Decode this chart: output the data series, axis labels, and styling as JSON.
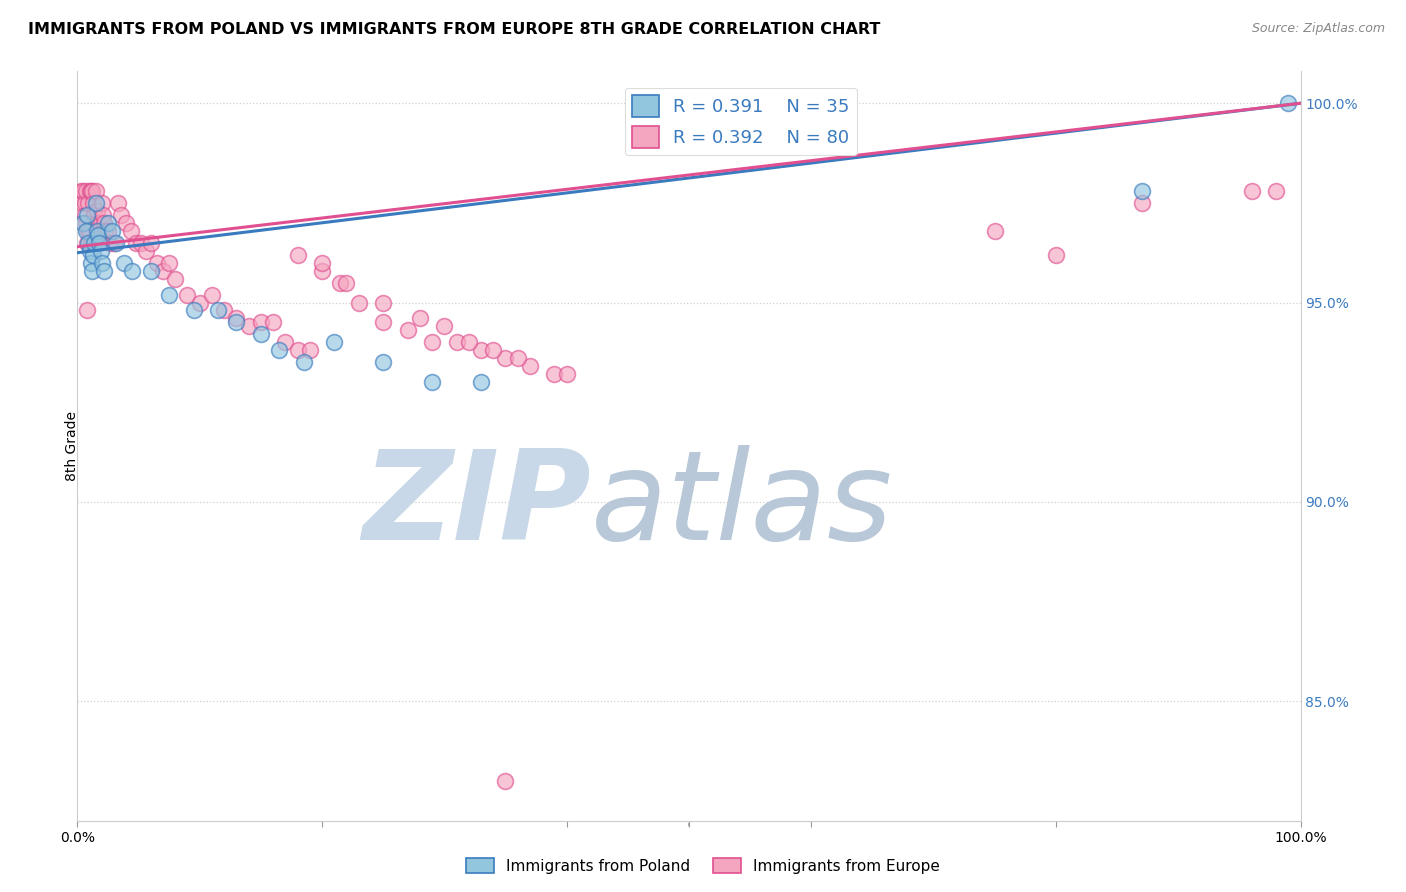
{
  "title": "IMMIGRANTS FROM POLAND VS IMMIGRANTS FROM EUROPE 8TH GRADE CORRELATION CHART",
  "source": "Source: ZipAtlas.com",
  "ylabel": "8th Grade",
  "legend_blue_r": "R = 0.391",
  "legend_blue_n": "N = 35",
  "legend_pink_r": "R = 0.392",
  "legend_pink_n": "N = 80",
  "blue_color": "#92c5de",
  "pink_color": "#f4a6c0",
  "blue_line_color": "#3a7bbf",
  "pink_line_color": "#e05090",
  "blue_scatter_x": [
    0.005,
    0.007,
    0.008,
    0.009,
    0.01,
    0.011,
    0.012,
    0.013,
    0.014,
    0.015,
    0.016,
    0.017,
    0.018,
    0.019,
    0.02,
    0.022,
    0.025,
    0.028,
    0.032,
    0.038,
    0.045,
    0.06,
    0.075,
    0.095,
    0.115,
    0.13,
    0.15,
    0.165,
    0.185,
    0.21,
    0.25,
    0.29,
    0.33,
    0.87,
    0.99
  ],
  "blue_scatter_y": [
    0.97,
    0.968,
    0.972,
    0.965,
    0.963,
    0.96,
    0.958,
    0.962,
    0.965,
    0.975,
    0.968,
    0.967,
    0.965,
    0.963,
    0.96,
    0.958,
    0.97,
    0.968,
    0.965,
    0.96,
    0.958,
    0.958,
    0.952,
    0.948,
    0.948,
    0.945,
    0.942,
    0.938,
    0.935,
    0.94,
    0.935,
    0.93,
    0.93,
    0.978,
    1.0
  ],
  "pink_scatter_x": [
    0.003,
    0.004,
    0.005,
    0.006,
    0.006,
    0.007,
    0.007,
    0.008,
    0.008,
    0.009,
    0.009,
    0.01,
    0.01,
    0.011,
    0.011,
    0.012,
    0.013,
    0.014,
    0.015,
    0.016,
    0.017,
    0.018,
    0.019,
    0.02,
    0.021,
    0.022,
    0.023,
    0.025,
    0.027,
    0.03,
    0.033,
    0.036,
    0.04,
    0.044,
    0.048,
    0.052,
    0.056,
    0.06,
    0.065,
    0.07,
    0.075,
    0.08,
    0.09,
    0.1,
    0.11,
    0.12,
    0.13,
    0.14,
    0.15,
    0.16,
    0.17,
    0.18,
    0.19,
    0.2,
    0.215,
    0.23,
    0.25,
    0.27,
    0.29,
    0.31,
    0.33,
    0.35,
    0.37,
    0.39,
    0.18,
    0.2,
    0.22,
    0.25,
    0.28,
    0.3,
    0.32,
    0.34,
    0.36,
    0.4,
    0.75,
    0.8,
    0.87,
    0.96,
    0.35,
    0.98
  ],
  "pink_scatter_y": [
    0.978,
    0.975,
    0.978,
    0.975,
    0.972,
    0.978,
    0.97,
    0.965,
    0.948,
    0.975,
    0.968,
    0.978,
    0.968,
    0.978,
    0.965,
    0.978,
    0.975,
    0.972,
    0.978,
    0.973,
    0.97,
    0.968,
    0.97,
    0.975,
    0.972,
    0.97,
    0.968,
    0.968,
    0.965,
    0.965,
    0.975,
    0.972,
    0.97,
    0.968,
    0.965,
    0.965,
    0.963,
    0.965,
    0.96,
    0.958,
    0.96,
    0.956,
    0.952,
    0.95,
    0.952,
    0.948,
    0.946,
    0.944,
    0.945,
    0.945,
    0.94,
    0.938,
    0.938,
    0.958,
    0.955,
    0.95,
    0.945,
    0.943,
    0.94,
    0.94,
    0.938,
    0.936,
    0.934,
    0.932,
    0.962,
    0.96,
    0.955,
    0.95,
    0.946,
    0.944,
    0.94,
    0.938,
    0.936,
    0.932,
    0.968,
    0.962,
    0.975,
    0.978,
    0.83,
    0.978
  ],
  "blue_trend": [
    0.9625,
    1.0
  ],
  "pink_trend": [
    0.964,
    1.0
  ],
  "watermark_zip": "ZIP",
  "watermark_atlas": "atlas",
  "watermark_color_zip": "#c8d8e8",
  "watermark_color_atlas": "#b8c8d8",
  "background_color": "#ffffff",
  "grid_color": "#d0d0d0",
  "xlim": [
    0.0,
    1.0
  ],
  "ylim": [
    0.82,
    1.008
  ],
  "yticks": [
    0.85,
    0.9,
    0.95,
    1.0
  ],
  "ytick_labels": [
    "85.0%",
    "90.0%",
    "95.0%",
    "100.0%"
  ],
  "xtick_positions": [
    0.0,
    0.2,
    0.4,
    0.5,
    0.6,
    0.8,
    1.0
  ],
  "xtick_labels": [
    "0.0%",
    "",
    "",
    "",
    "",
    "",
    "100.0%"
  ]
}
